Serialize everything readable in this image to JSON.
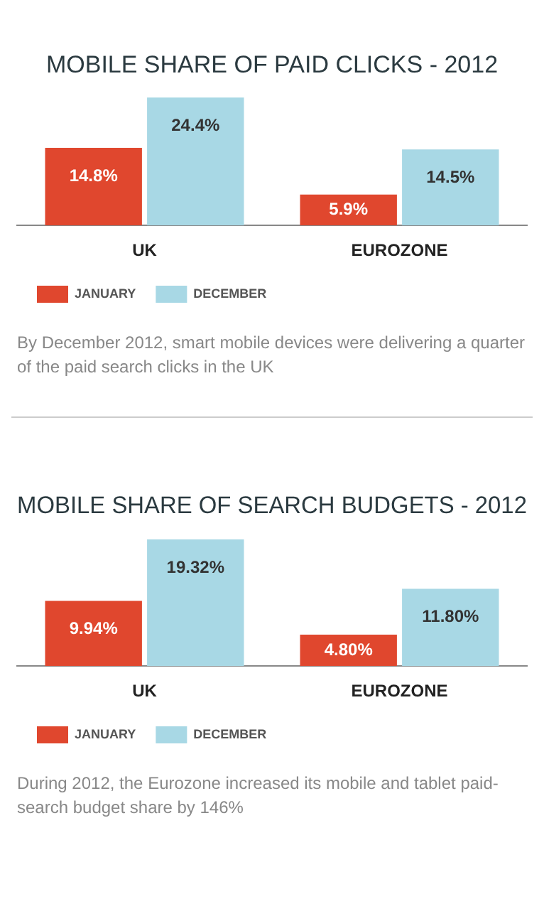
{
  "chart_data": [
    {
      "type": "bar",
      "title": "MOBILE SHARE OF PAID CLICKS - 2012",
      "categories": [
        "UK",
        "EUROZONE"
      ],
      "series": [
        {
          "name": "JANUARY",
          "color": "#e0472e",
          "values": [
            14.8,
            5.9
          ],
          "value_labels": [
            "14.8%",
            "5.9%"
          ]
        },
        {
          "name": "DECEMBER",
          "color": "#a8d8e5",
          "values": [
            24.4,
            14.5
          ],
          "value_labels": [
            "24.4%",
            "14.5%"
          ]
        }
      ],
      "legend": "bottom left",
      "annotations": [
        "By December 2012, smart mobile devices were delivering a quarter of the paid search clicks in the UK"
      ]
    },
    {
      "type": "bar",
      "title": "MOBILE SHARE OF SEARCH BUDGETS - 2012",
      "categories": [
        "UK",
        "EUROZONE"
      ],
      "series": [
        {
          "name": "JANUARY",
          "color": "#e0472e",
          "values": [
            9.94,
            4.8
          ],
          "value_labels": [
            "9.94%",
            "4.80%"
          ]
        },
        {
          "name": "DECEMBER",
          "color": "#a8d8e5",
          "values": [
            19.32,
            11.8
          ],
          "value_labels": [
            "19.32%",
            "11.80%"
          ]
        }
      ],
      "legend": "bottom left",
      "annotations": [
        "During 2012, the Eurozone increased its mobile and tablet paid-search budget share by 146%"
      ]
    }
  ]
}
